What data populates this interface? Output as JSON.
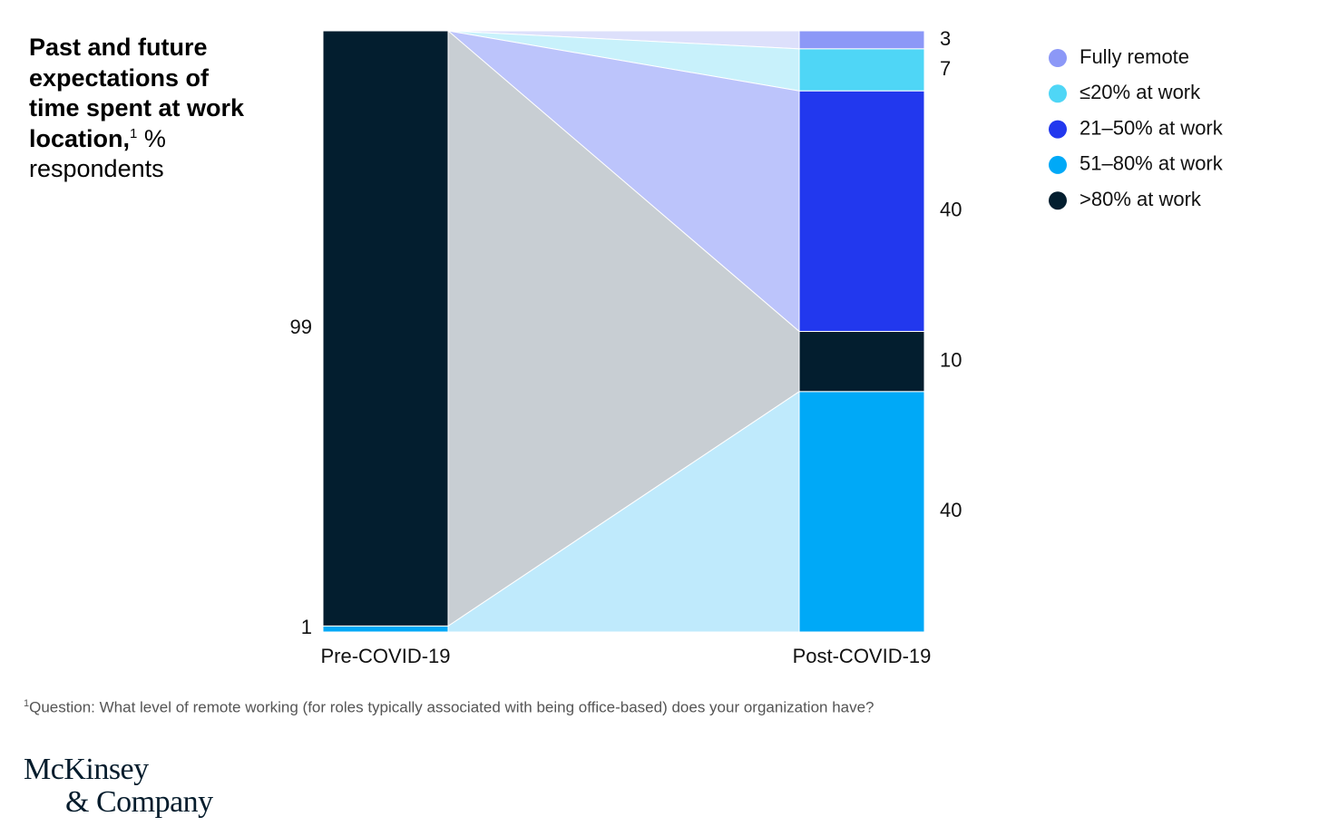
{
  "chart_data": {
    "type": "alluvial",
    "title": "Past and future expectations of time spent at work location,",
    "title_note": "1",
    "subtitle": "% respondents",
    "categories": [
      "Pre-COVID-19",
      "Post-COVID-19"
    ],
    "series": [
      {
        "name": "Fully remote",
        "color": "#8c98f7",
        "flow_color": "#dde0fb",
        "values": [
          null,
          3
        ]
      },
      {
        "name": "≤20% at work",
        "color": "#4fd6f6",
        "flow_color": "#c8f1fb",
        "values": [
          null,
          7
        ]
      },
      {
        "name": "21–50% at work",
        "color": "#2238ee",
        "flow_color": "#bcc4fb",
        "values": [
          null,
          40
        ]
      },
      {
        "name": "51–80% at work",
        "color": "#00a9f7",
        "flow_color": "#bfeafc",
        "values": [
          1,
          40
        ]
      },
      {
        "name": ">80% at work",
        "color": "#031e2f",
        "flow_color": "#c8ced3",
        "values": [
          99,
          10
        ]
      }
    ],
    "footnote": {
      "mark": "1",
      "text": "Question: What level of remote working (for roles typically associated with being office-based) does your organization have?"
    }
  },
  "footer": {
    "logo": [
      "McKinsey",
      "& Company"
    ]
  }
}
